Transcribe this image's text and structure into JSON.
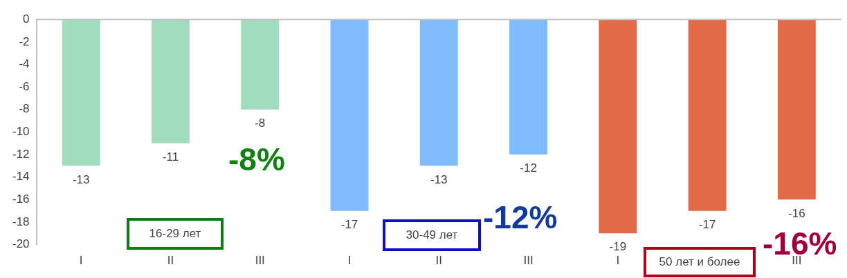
{
  "chart_data": {
    "type": "bar",
    "categories": [
      "I",
      "II",
      "III",
      "I",
      "II",
      "III",
      "I",
      null,
      "III"
    ],
    "values": [
      -13,
      -11,
      -8,
      -17,
      -13,
      -12,
      -19,
      -17,
      -16
    ],
    "colors": [
      "#a2dcbf",
      "#a2dcbf",
      "#a2dcbf",
      "#80bcfb",
      "#80bcfb",
      "#80bcfb",
      "#e36a47",
      "#e36a47",
      "#e36a47"
    ],
    "ylim": [
      -20,
      0
    ],
    "yticks": [
      -20,
      -18,
      -16,
      -14,
      -12,
      -10,
      -8,
      -6,
      -4,
      -2,
      0
    ],
    "data_labels": true,
    "grid": false,
    "legend": false,
    "annotations": [
      "16-29 лет",
      "-8%",
      "30-49 лет",
      "-12%",
      "50 лет и более",
      "-16%"
    ]
  }
}
